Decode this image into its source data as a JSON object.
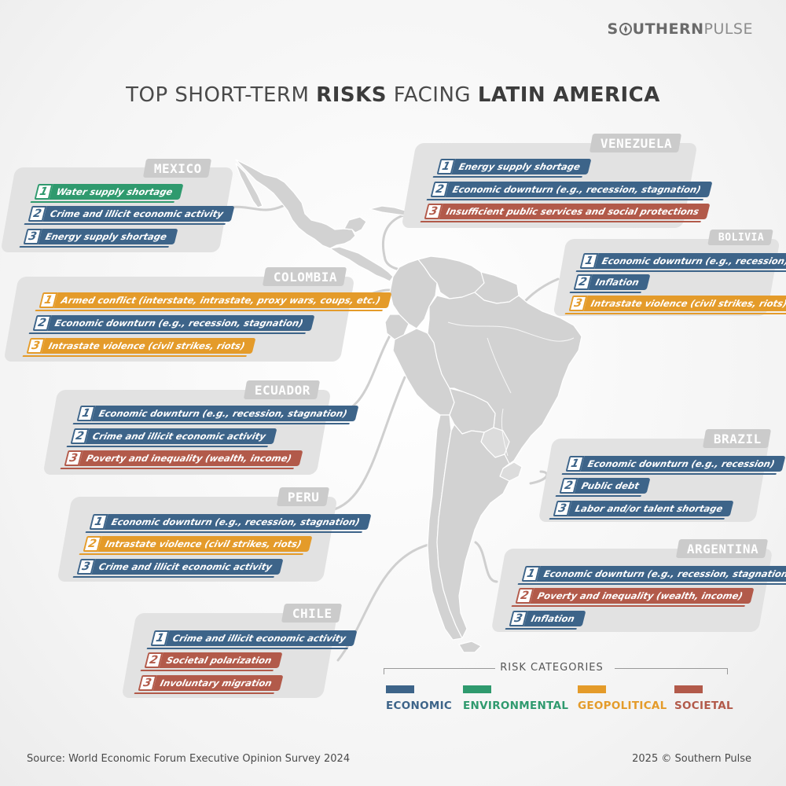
{
  "brand": {
    "part1": "S",
    "part2": "UTHERN",
    "part3": "PULSE"
  },
  "title": {
    "pre": "TOP SHORT-TERM ",
    "bold1": "RISKS",
    "mid": " FACING ",
    "bold2": "LATIN AMERICA"
  },
  "colors": {
    "economic": "#3d6489",
    "environmental": "#2f9a6e",
    "geopolitical": "#e49b2a",
    "societal": "#b25a4a",
    "land": "#d2d2d2",
    "card": "#e2e2e2"
  },
  "countries": {
    "mexico": {
      "name": "MEXICO",
      "risks": [
        {
          "rank": "1",
          "label": "Water supply shortage",
          "category": "environmental"
        },
        {
          "rank": "2",
          "label": "Crime and illicit economic activity",
          "category": "economic"
        },
        {
          "rank": "3",
          "label": "Energy supply shortage",
          "category": "economic"
        }
      ]
    },
    "colombia": {
      "name": "COLOMBIA",
      "risks": [
        {
          "rank": "1",
          "label": "Armed conflict (interstate, intrastate, proxy wars, coups, etc.)",
          "category": "geopolitical"
        },
        {
          "rank": "2",
          "label": "Economic downturn (e.g., recession, stagnation)",
          "category": "economic"
        },
        {
          "rank": "3",
          "label": "Intrastate violence (civil strikes, riots)",
          "category": "geopolitical"
        }
      ]
    },
    "ecuador": {
      "name": "ECUADOR",
      "risks": [
        {
          "rank": "1",
          "label": "Economic downturn (e.g., recession, stagnation)",
          "category": "economic"
        },
        {
          "rank": "2",
          "label": "Crime and illicit economic activity",
          "category": "economic"
        },
        {
          "rank": "3",
          "label": "Poverty and inequality (wealth, income)",
          "category": "societal"
        }
      ]
    },
    "peru": {
      "name": "PERU",
      "risks": [
        {
          "rank": "1",
          "label": "Economic downturn (e.g., recession, stagnation)",
          "category": "economic"
        },
        {
          "rank": "2",
          "label": "Intrastate violence (civil strikes, riots)",
          "category": "geopolitical"
        },
        {
          "rank": "3",
          "label": "Crime and illicit economic activity",
          "category": "economic"
        }
      ]
    },
    "chile": {
      "name": "CHILE",
      "risks": [
        {
          "rank": "1",
          "label": "Crime and illicit economic activity",
          "category": "economic"
        },
        {
          "rank": "2",
          "label": "Societal polarization",
          "category": "societal"
        },
        {
          "rank": "3",
          "label": "Involuntary migration",
          "category": "societal"
        }
      ]
    },
    "venezuela": {
      "name": "VENEZUELA",
      "risks": [
        {
          "rank": "1",
          "label": "Energy supply shortage",
          "category": "economic"
        },
        {
          "rank": "2",
          "label": "Economic downturn (e.g., recession, stagnation)",
          "category": "economic"
        },
        {
          "rank": "3",
          "label": "Insufficient public services and social protections",
          "category": "societal"
        }
      ]
    },
    "bolivia": {
      "name": "BOLIVIA",
      "risks": [
        {
          "rank": "1",
          "label": "Economic downturn (e.g., recession)",
          "category": "economic"
        },
        {
          "rank": "2",
          "label": "Inflation",
          "category": "economic"
        },
        {
          "rank": "3",
          "label": "Intrastate violence (civil strikes, riots)",
          "category": "geopolitical"
        }
      ]
    },
    "brazil": {
      "name": "BRAZIL",
      "risks": [
        {
          "rank": "1",
          "label": "Economic downturn (e.g., recession)",
          "category": "economic"
        },
        {
          "rank": "2",
          "label": "Public debt",
          "category": "economic"
        },
        {
          "rank": "3",
          "label": "Labor and/or talent shortage",
          "category": "economic"
        }
      ]
    },
    "argentina": {
      "name": "ARGENTINA",
      "risks": [
        {
          "rank": "1",
          "label": "Economic downturn (e.g., recession, stagnation)",
          "category": "economic"
        },
        {
          "rank": "2",
          "label": "Poverty and inequality (wealth, income)",
          "category": "societal"
        },
        {
          "rank": "3",
          "label": "Inflation",
          "category": "economic"
        }
      ]
    }
  },
  "legend": {
    "title": "RISK CATEGORIES",
    "items": [
      {
        "label": "ECONOMIC",
        "color": "#3d6489"
      },
      {
        "label": "ENVIRONMENTAL",
        "color": "#2f9a6e"
      },
      {
        "label": "GEOPOLITICAL",
        "color": "#e49b2a"
      },
      {
        "label": "SOCIETAL",
        "color": "#b25a4a"
      }
    ]
  },
  "footer": {
    "source": "Source: World Economic Forum Executive Opinion Survey 2024",
    "copyright": "2025 © Southern Pulse"
  }
}
